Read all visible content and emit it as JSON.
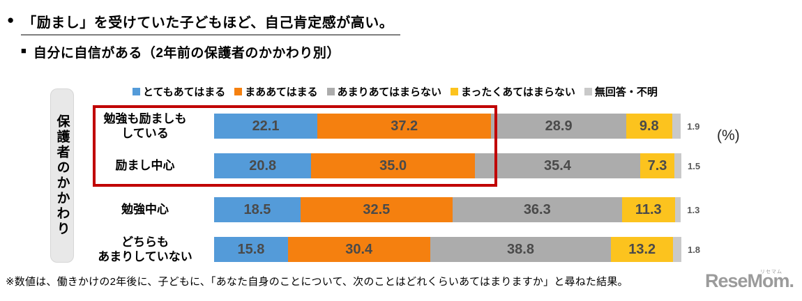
{
  "header": {
    "bullet": "●",
    "title": "「励まし」を受けていた子どもほど、自己肯定感が高い。",
    "subtitle_marker": "■",
    "subtitle": "自分に自信がある（2年前の保護者のかかわり別）"
  },
  "chart_data": {
    "type": "bar",
    "variant": "horizontal-stacked-100",
    "title": "自分に自信がある（2年前の保護者のかかわり別）",
    "axis_label": "保護者のかかわり",
    "unit_label": "(%)",
    "legend_position": "top",
    "grid": false,
    "xlim": [
      0,
      100
    ],
    "categories": [
      [
        "勉強も励ましも",
        "している"
      ],
      [
        "励まし中心"
      ],
      [
        "勉強中心"
      ],
      [
        "どちらも",
        "あまりしていない"
      ]
    ],
    "series": [
      {
        "name": "とてもあてはまる",
        "color": "#549BD9",
        "values": [
          22.1,
          20.8,
          18.5,
          15.8
        ]
      },
      {
        "name": "まああてはまる",
        "color": "#F5800F",
        "values": [
          37.2,
          35.0,
          32.5,
          30.4
        ]
      },
      {
        "name": "あまりあてはまらない",
        "color": "#ACACAC",
        "values": [
          28.9,
          35.4,
          36.3,
          38.8
        ]
      },
      {
        "name": "まったくあてはまらない",
        "color": "#FCC31E",
        "values": [
          9.8,
          7.3,
          11.3,
          13.2
        ]
      },
      {
        "name": "無回答・不明",
        "color": "#C9C9C9",
        "values": [
          1.9,
          1.5,
          1.3,
          1.8
        ]
      }
    ],
    "highlight_box": {
      "color": "#C00000",
      "categories": [
        "勉強も励ましもしている",
        "励まし中心"
      ]
    }
  },
  "footnote": "※数値は、働きかけの2年後に、子どもに、「あなた自身のことについて、次のことはどれくらいあてはまりますか」と尋ねた結果。",
  "logo": {
    "text": "ReseMom.",
    "ruby": "リセマム"
  }
}
